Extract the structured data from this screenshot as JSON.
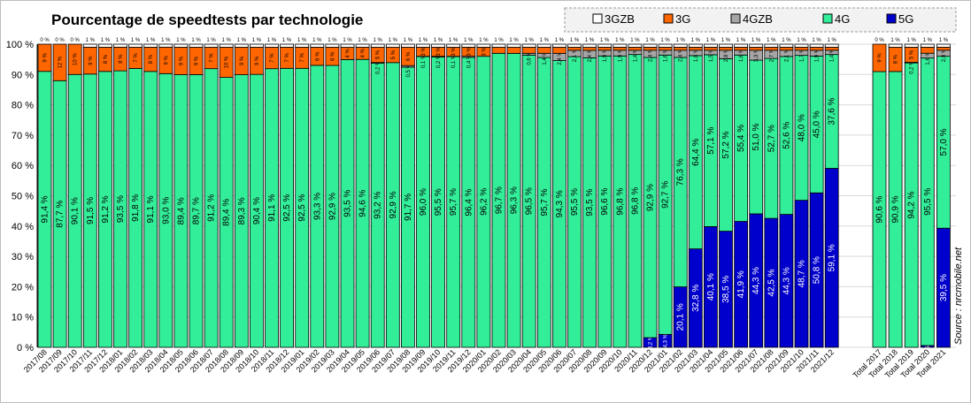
{
  "chart_data": {
    "type": "bar",
    "stacked": true,
    "title": "Pourcentage de speedtests par technologie",
    "source": "Source : nrcmobile.net",
    "ylim": [
      0,
      100
    ],
    "y_ticks": [
      "0 %",
      "10 %",
      "20 %",
      "30 %",
      "40 %",
      "50 %",
      "60 %",
      "70 %",
      "80 %",
      "90 %",
      "100 %"
    ],
    "legend_position": "top-right",
    "colors": {
      "3GZB": "#ffffff",
      "3G": "#ff6600",
      "4GZB": "#a6a6a6",
      "4G": "#33ee99",
      "5G": "#0000cc"
    },
    "legend": [
      "3GZB",
      "3G",
      "4GZB",
      "4G",
      "5G"
    ],
    "categories": [
      "2017/08",
      "2017/09",
      "2017/10",
      "2017/11",
      "2017/12",
      "2018/01",
      "2018/02",
      "2018/03",
      "2018/04",
      "2018/05",
      "2018/06",
      "2018/07",
      "2018/08",
      "2018/09",
      "2018/10",
      "2018/11",
      "2018/12",
      "2019/01",
      "2019/02",
      "2019/03",
      "2019/04",
      "2019/05",
      "2019/06",
      "2019/07",
      "2019/08",
      "2019/09",
      "2019/10",
      "2019/11",
      "2019/12",
      "2020/01",
      "2020/02",
      "2020/03",
      "2020/04",
      "2020/05",
      "2020/06",
      "2020/07",
      "2020/08",
      "2020/09",
      "2020/10",
      "2020/11",
      "2020/12",
      "2021/01",
      "2021/02",
      "2021/03",
      "2021/04",
      "2021/05",
      "2021/06",
      "2021/07",
      "2021/08",
      "2021/09",
      "2021/10",
      "2021/11",
      "2021/12",
      "Total 2017",
      "Total 2018",
      "Total 2019",
      "Total 2020",
      "Total 2021"
    ],
    "series": [
      {
        "name": "5G",
        "values": [
          0,
          0,
          0,
          0,
          0,
          0,
          0,
          0,
          0,
          0,
          0,
          0,
          0,
          0,
          0,
          0,
          0,
          0,
          0,
          0,
          0,
          0,
          0,
          0,
          0,
          0,
          0,
          0,
          0,
          0,
          0,
          0,
          0,
          0,
          0,
          0,
          0,
          0,
          0,
          0,
          3.2,
          4.3,
          20.1,
          32.8,
          40.1,
          38.5,
          41.9,
          44.3,
          42.5,
          44.3,
          48.7,
          50.8,
          59.1,
          0,
          0,
          0,
          0.6,
          39.5
        ]
      },
      {
        "name": "4G",
        "values": [
          91.4,
          87.7,
          90.1,
          91.5,
          91.2,
          93.5,
          91.8,
          91.1,
          93.0,
          89.4,
          89.7,
          91.2,
          89.4,
          89.3,
          90.4,
          91.1,
          92.5,
          92.5,
          93.3,
          92.9,
          93.5,
          94.6,
          93.2,
          92.9,
          91.7,
          96.0,
          95.5,
          95.7,
          96.4,
          96.2,
          96.7,
          96.3,
          96.5,
          95.7,
          94.3,
          95.5,
          93.5,
          96.6,
          96.8,
          96.8,
          92.9,
          92.7,
          76.3,
          64.4,
          57.1,
          57.2,
          55.4,
          51.0,
          52.7,
          52.6,
          48.0,
          45.0,
          37.6,
          90.6,
          90.9,
          94.2,
          95.5,
          57.0
        ]
      },
      {
        "name": "4GZB",
        "values": [
          0,
          0,
          0,
          0,
          0,
          0,
          0,
          0,
          0,
          0,
          0,
          0,
          0,
          0,
          0,
          0,
          0,
          0,
          0,
          0,
          0,
          0,
          0.2,
          0,
          0.5,
          0.1,
          0.2,
          0.1,
          0.4,
          0,
          0,
          0,
          0.6,
          1.4,
          2.4,
          2.1,
          2.4,
          1.9,
          1.9,
          1.4,
          2.4,
          1.6,
          2.4,
          1.8,
          1.5,
          2.8,
          1.6,
          3.3,
          2.7,
          2.1,
          1.7,
          1.9,
          1.4,
          0,
          0,
          0.2,
          1.6,
          2.0
        ]
      },
      {
        "name": "3G",
        "values": [
          9,
          12,
          10,
          9,
          8,
          8,
          7,
          8,
          9,
          9,
          9,
          7,
          10,
          9,
          9,
          7,
          7,
          7,
          6,
          6,
          4,
          4,
          5,
          5,
          6,
          3,
          3,
          3,
          3,
          3,
          2,
          2,
          2,
          2,
          2,
          1,
          1,
          1,
          1,
          1,
          1,
          1,
          1,
          1,
          1,
          1,
          1,
          1,
          1,
          1,
          1,
          1,
          1,
          9,
          8,
          5,
          2,
          1
        ]
      },
      {
        "name": "3GZB",
        "values": [
          0,
          0,
          0,
          1,
          1,
          1,
          1,
          1,
          1,
          1,
          1,
          1,
          1,
          1,
          1,
          1,
          1,
          1,
          1,
          1,
          1,
          1,
          1,
          1,
          1,
          1,
          1,
          1,
          1,
          1,
          1,
          1,
          1,
          1,
          1,
          1,
          1,
          1,
          1,
          1,
          1,
          1,
          1,
          1,
          1,
          1,
          1,
          1,
          1,
          1,
          1,
          1,
          1,
          0,
          1,
          1,
          1,
          1
        ]
      }
    ]
  }
}
